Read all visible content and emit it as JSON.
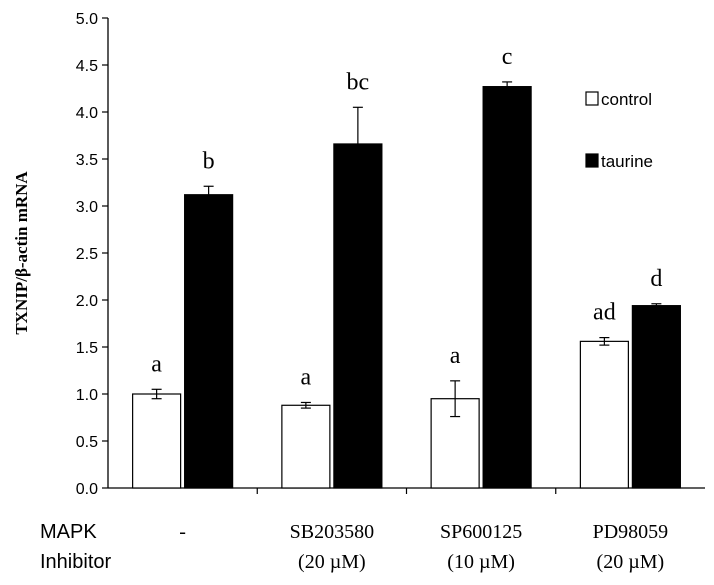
{
  "chart_data": {
    "type": "bar",
    "title": "",
    "xlabel": "",
    "ylabel": "TXNIP/β-actin mRNA",
    "ylim": [
      0,
      5.0
    ],
    "ytick_step": 0.5,
    "yticks": [
      "0.0",
      "0.5",
      "1.0",
      "1.5",
      "2.0",
      "2.5",
      "3.0",
      "3.5",
      "4.0",
      "4.5",
      "5.0"
    ],
    "row_label_lines": [
      "MAPK",
      "Inhibitor"
    ],
    "categories": [
      {
        "line1": "-",
        "line2": ""
      },
      {
        "line1": "SB203580",
        "line2": "(20 µM)"
      },
      {
        "line1": "SP600125",
        "line2": "(10 µM)"
      },
      {
        "line1": "PD98059",
        "line2": "(20 µM)"
      }
    ],
    "series": [
      {
        "name": "control",
        "color": "#ffffff",
        "values": [
          1.0,
          0.88,
          0.95,
          1.56
        ],
        "errors": [
          0.05,
          0.03,
          0.19,
          0.04
        ],
        "labels": [
          "a",
          "a",
          "a",
          "ad"
        ]
      },
      {
        "name": "taurine",
        "color": "#000000",
        "values": [
          3.12,
          3.66,
          4.27,
          1.94
        ],
        "errors": [
          0.09,
          0.39,
          0.05,
          0.02
        ],
        "labels": [
          "b",
          "bc",
          "c",
          "d"
        ]
      }
    ],
    "legend_position": "top-right",
    "grid": false
  }
}
